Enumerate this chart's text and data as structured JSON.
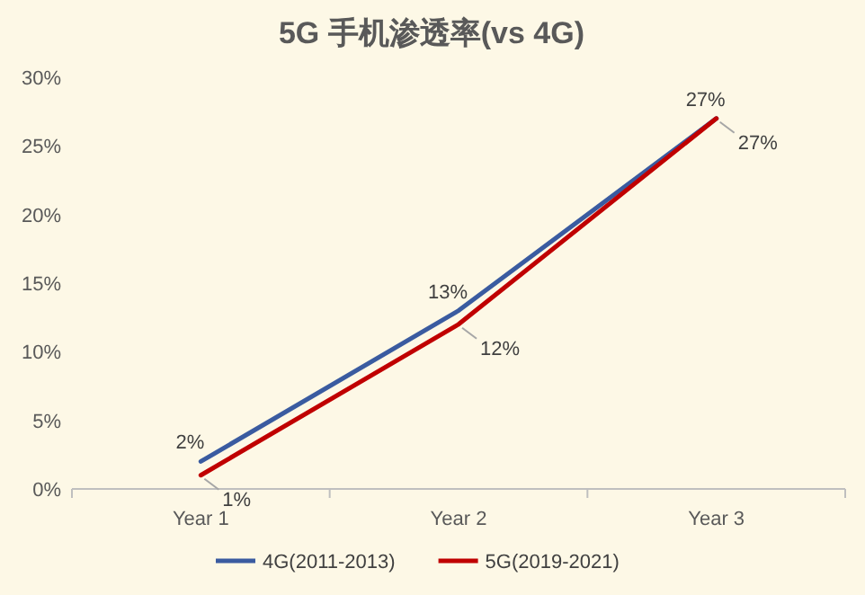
{
  "chart_data": {
    "type": "line",
    "title": "5G 手机渗透率(vs 4G)",
    "categories": [
      "Year 1",
      "Year 2",
      "Year 3"
    ],
    "series": [
      {
        "name": "4G(2011-2013)",
        "color": "#3a5ba0",
        "values": [
          2,
          13,
          27
        ],
        "value_labels": [
          "2%",
          "13%",
          "27%"
        ]
      },
      {
        "name": "5G(2019-2021)",
        "color": "#c00000",
        "values": [
          1,
          12,
          27
        ],
        "value_labels": [
          "1%",
          "12%",
          "27%"
        ]
      }
    ],
    "ylim": [
      0,
      30
    ],
    "yticks": [
      {
        "value": 0,
        "label": "0%"
      },
      {
        "value": 5,
        "label": "5%"
      },
      {
        "value": 10,
        "label": "10%"
      },
      {
        "value": 15,
        "label": "15%"
      },
      {
        "value": 20,
        "label": "20%"
      },
      {
        "value": 25,
        "label": "25%"
      },
      {
        "value": 30,
        "label": "30%"
      }
    ],
    "grid": false,
    "legend": "bottom",
    "marker": "none",
    "line_style": "solid"
  }
}
